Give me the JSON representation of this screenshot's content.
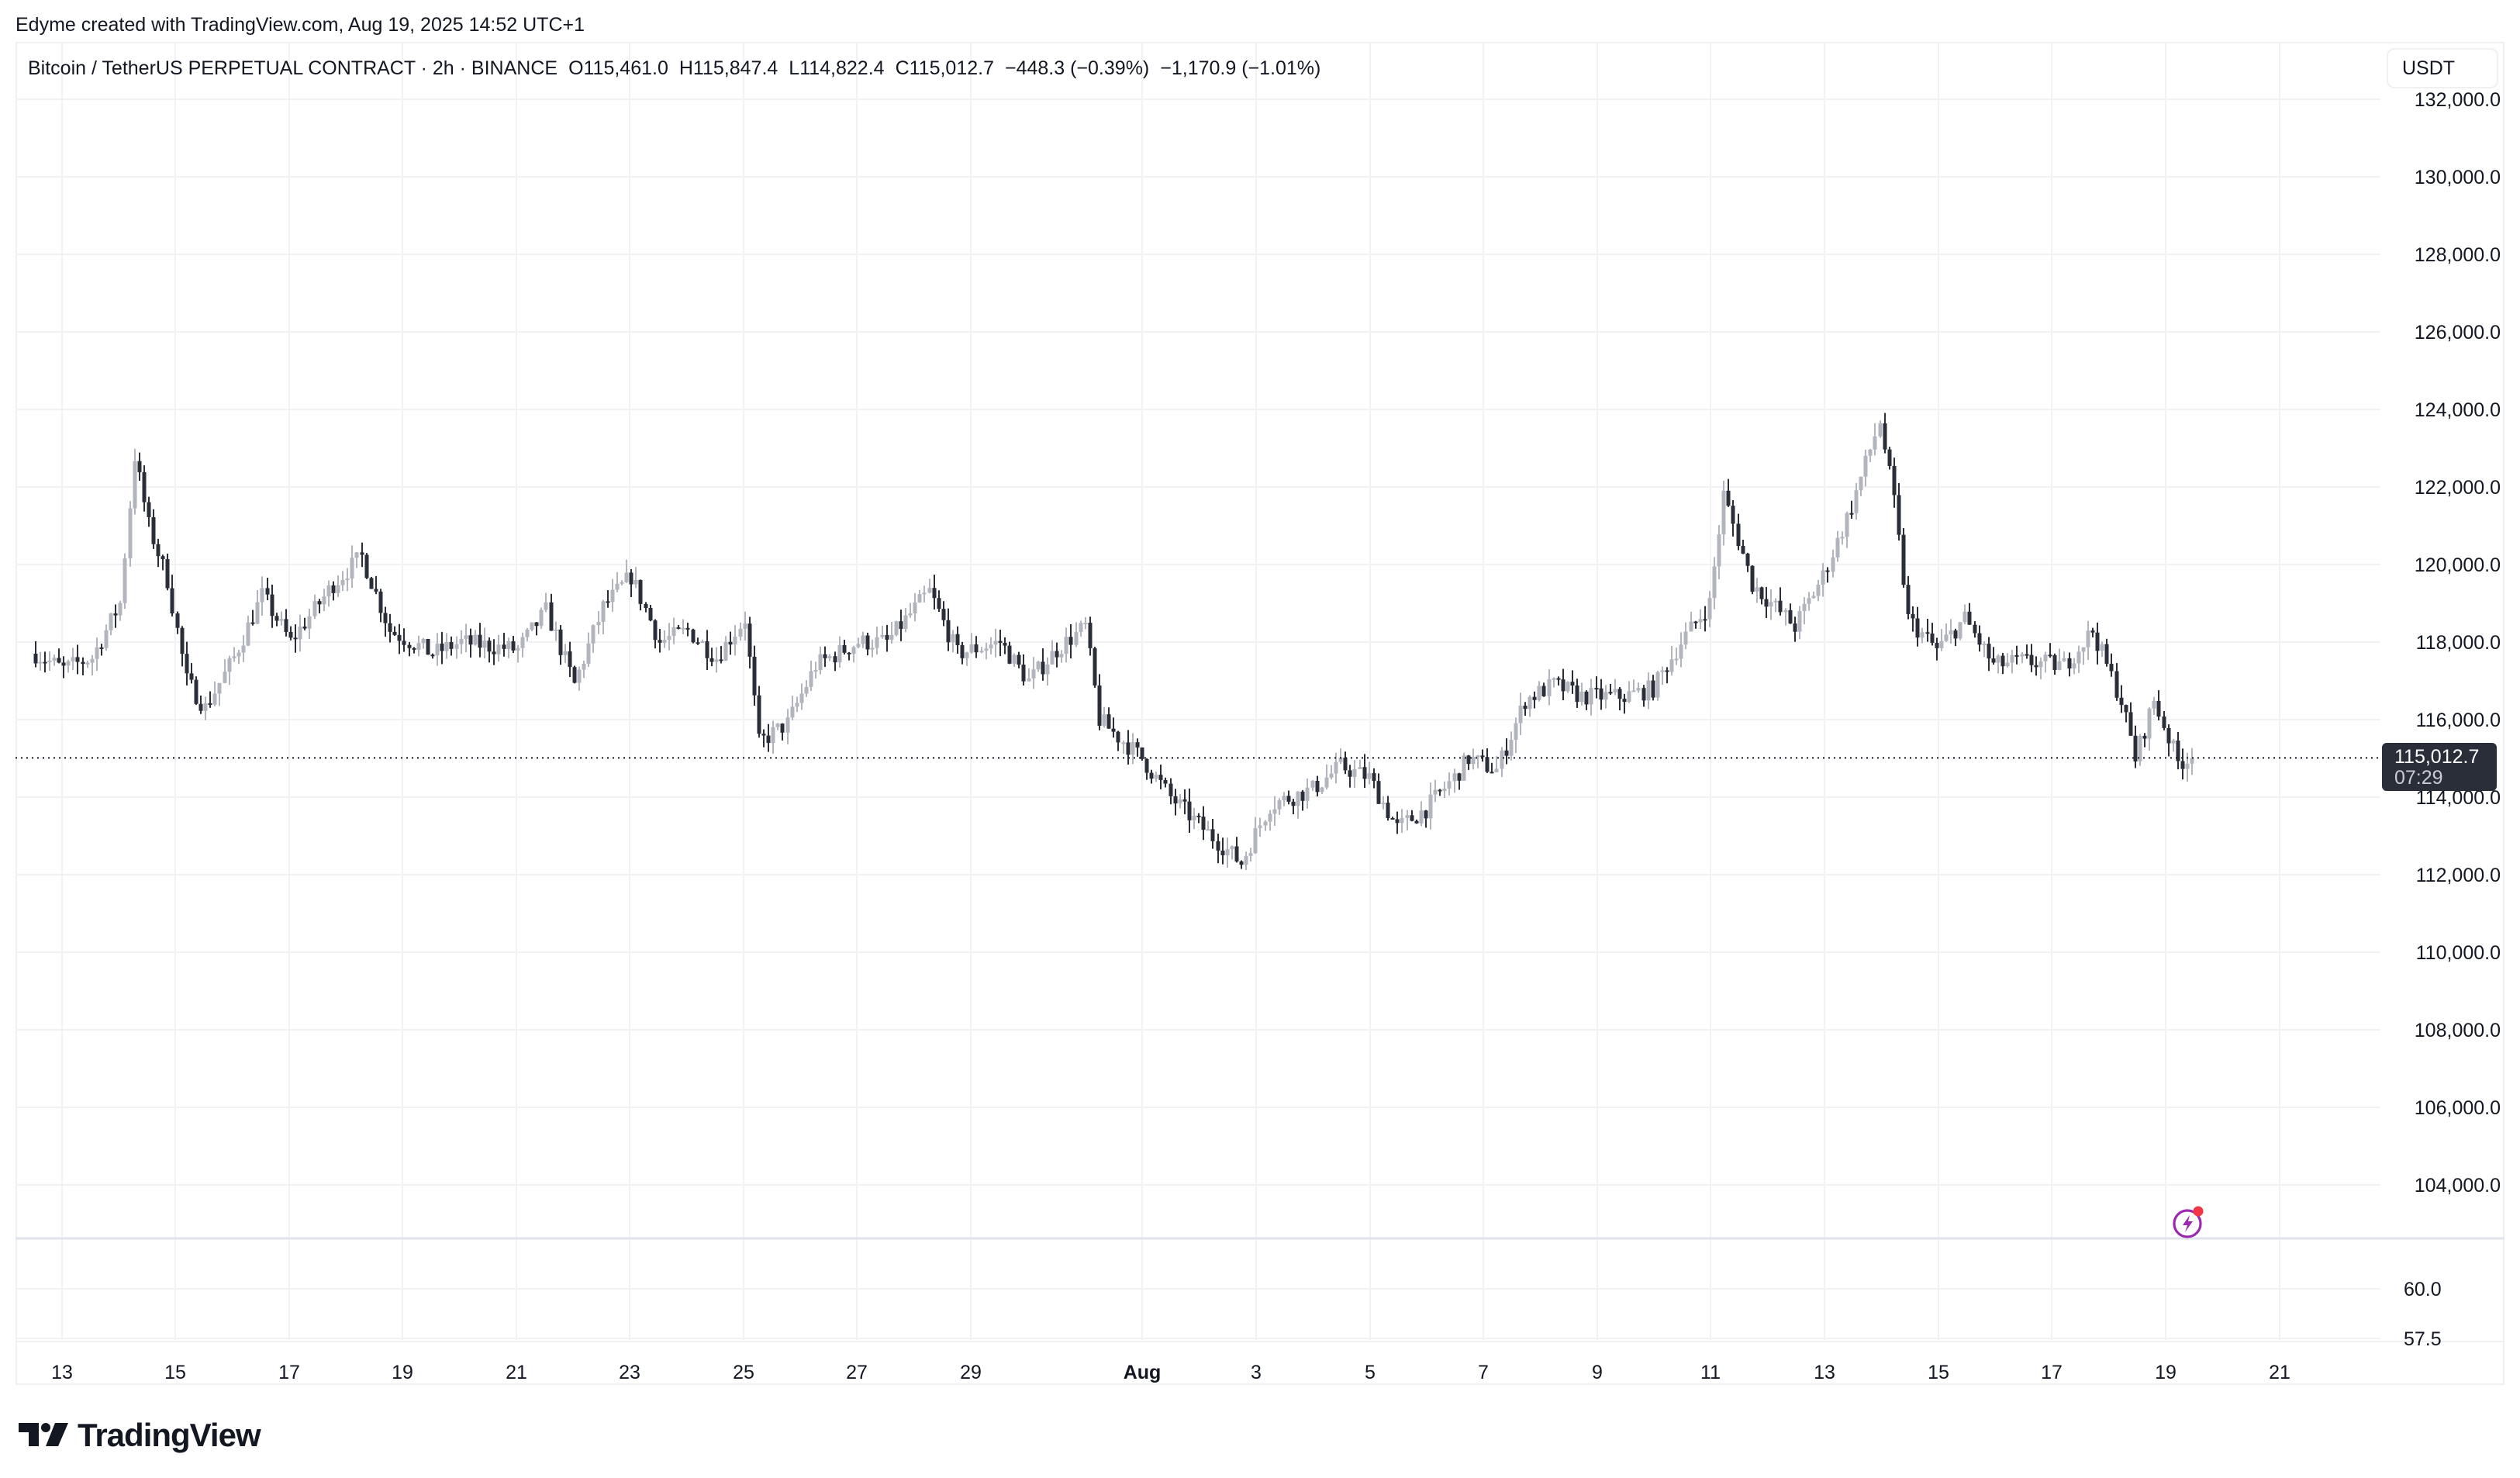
{
  "credit": "Edyme created with TradingView.com, Aug 19, 2025 14:52 UTC+1",
  "legend": {
    "symbol": "Bitcoin / TetherUS PERPETUAL CONTRACT · 2h · BINANCE",
    "open": "O115,461.0",
    "high": "H115,847.4",
    "low": "L114,822.4",
    "close": "C115,012.7",
    "change": "−448.3 (−0.39%)",
    "change2": "−1,170.9 (−1.01%)"
  },
  "currency": "USDT",
  "last_price": {
    "value": "115,012.7",
    "countdown": "07:29"
  },
  "logo_text": "TradingView",
  "colors": {
    "up": "#b2b5be",
    "down": "#2a2e39",
    "grid": "#f2f2f4",
    "text": "#131722",
    "alert": "#9c27b0",
    "alert_dot": "#f23645"
  },
  "chart_data": {
    "type": "candlestick",
    "title": "Bitcoin / TetherUS PERPETUAL CONTRACT · 2h · BINANCE",
    "xlabel": "",
    "ylabel": "USDT",
    "ylim": [
      102600,
      132600
    ],
    "price_ticks": [
      "132,000.0",
      "130,000.0",
      "128,000.0",
      "126,000.0",
      "124,000.0",
      "122,000.0",
      "120,000.0",
      "118,000.0",
      "116,000.0",
      "114,000.0",
      "112,000.0",
      "110,000.0",
      "108,000.0",
      "106,000.0",
      "104,000.0"
    ],
    "lower_pane_ticks": [
      "60.0",
      "57.5"
    ],
    "x_ticks": [
      {
        "label": "13",
        "x": 80
      },
      {
        "label": "15",
        "x": 226
      },
      {
        "label": "17",
        "x": 373
      },
      {
        "label": "19",
        "x": 519
      },
      {
        "label": "21",
        "x": 666
      },
      {
        "label": "23",
        "x": 812
      },
      {
        "label": "25",
        "x": 959
      },
      {
        "label": "27",
        "x": 1105
      },
      {
        "label": "29",
        "x": 1252
      },
      {
        "label": "Aug",
        "x": 1473,
        "bold": true
      },
      {
        "label": "3",
        "x": 1620
      },
      {
        "label": "5",
        "x": 1767
      },
      {
        "label": "7",
        "x": 1913
      },
      {
        "label": "9",
        "x": 2060
      },
      {
        "label": "11",
        "x": 2206
      },
      {
        "label": "13",
        "x": 2353
      },
      {
        "label": "15",
        "x": 2500
      },
      {
        "label": "17",
        "x": 2646
      },
      {
        "label": "19",
        "x": 2793
      },
      {
        "label": "21",
        "x": 2940
      }
    ],
    "key_points_close": [
      [
        "Jul 12 12:00",
        117700
      ],
      [
        "Jul 13 00:00",
        117300
      ],
      [
        "Jul 13 12:00",
        117600
      ],
      [
        "Jul 14 00:00",
        119000
      ],
      [
        "Jul 14 06:00",
        122800
      ],
      [
        "Jul 14 12:00",
        121000
      ],
      [
        "Jul 14 20:00",
        119600
      ],
      [
        "Jul 15 04:00",
        117000
      ],
      [
        "Jul 15 12:00",
        116300
      ],
      [
        "Jul 16 00:00",
        117600
      ],
      [
        "Jul 16 12:00",
        119200
      ],
      [
        "Jul 17 00:00",
        118000
      ],
      [
        "Jul 17 18:00",
        119500
      ],
      [
        "Jul 18 06:00",
        120200
      ],
      [
        "Jul 18 18:00",
        118300
      ],
      [
        "Jul 19 12:00",
        117700
      ],
      [
        "Jul 20 00:00",
        118000
      ],
      [
        "Jul 21 00:00",
        117800
      ],
      [
        "Jul 21 12:00",
        118800
      ],
      [
        "Jul 22 00:00",
        116900
      ],
      [
        "Jul 22 12:00",
        118900
      ],
      [
        "Jul 23 00:00",
        119700
      ],
      [
        "Jul 23 12:00",
        118000
      ],
      [
        "Jul 24 00:00",
        118300
      ],
      [
        "Jul 24 12:00",
        117600
      ],
      [
        "Jul 25 00:00",
        118600
      ],
      [
        "Jul 25 06:00",
        115400
      ],
      [
        "Jul 25 18:00",
        115900
      ],
      [
        "Jul 26 06:00",
        117400
      ],
      [
        "Jul 27 00:00",
        118000
      ],
      [
        "Jul 27 12:00",
        118000
      ],
      [
        "Jul 28 06:00",
        119300
      ],
      [
        "Jul 28 18:00",
        117700
      ],
      [
        "Jul 29 12:00",
        118000
      ],
      [
        "Jul 30 00:00",
        117000
      ],
      [
        "Jul 30 12:00",
        117800
      ],
      [
        "Jul 31 00:00",
        118400
      ],
      [
        "Jul 31 06:00",
        116000
      ],
      [
        "Aug 1 00:00",
        115000
      ],
      [
        "Aug 1 12:00",
        114000
      ],
      [
        "Aug 2 00:00",
        113300
      ],
      [
        "Aug 2 18:00",
        112300
      ],
      [
        "Aug 3 06:00",
        113800
      ],
      [
        "Aug 4 00:00",
        114200
      ],
      [
        "Aug 4 12:00",
        114800
      ],
      [
        "Aug 5 00:00",
        114500
      ],
      [
        "Aug 5 12:00",
        113200
      ],
      [
        "Aug 6 00:00",
        113700
      ],
      [
        "Aug 6 12:00",
        114500
      ],
      [
        "Aug 6 18:00",
        115000
      ],
      [
        "Aug 7 06:00",
        114700
      ],
      [
        "Aug 7 18:00",
        116500
      ],
      [
        "Aug 8 06:00",
        116900
      ],
      [
        "Aug 8 18:00",
        116600
      ],
      [
        "Aug 9 12:00",
        116600
      ],
      [
        "Aug 10 00:00",
        116800
      ],
      [
        "Aug 10 12:00",
        118000
      ],
      [
        "Aug 11 00:00",
        119000
      ],
      [
        "Aug 11 06:00",
        121800
      ],
      [
        "Aug 11 18:00",
        119500
      ],
      [
        "Aug 12 12:00",
        118400
      ],
      [
        "Aug 13 00:00",
        119700
      ],
      [
        "Aug 13 12:00",
        121500
      ],
      [
        "Aug 14 00:00",
        123700
      ],
      [
        "Aug 14 06:00",
        121600
      ],
      [
        "Aug 14 12:00",
        118600
      ],
      [
        "Aug 15 00:00",
        117800
      ],
      [
        "Aug 15 12:00",
        118600
      ],
      [
        "Aug 16 00:00",
        117400
      ],
      [
        "Aug 16 12:00",
        117500
      ],
      [
        "Aug 17 06:00",
        117400
      ],
      [
        "Aug 17 18:00",
        118300
      ],
      [
        "Aug 18 06:00",
        116500
      ],
      [
        "Aug 18 12:00",
        115000
      ],
      [
        "Aug 18 20:00",
        116500
      ],
      [
        "Aug 19 06:00",
        114900
      ],
      [
        "Aug 19 12:00",
        115012.7
      ]
    ],
    "last_close": 115012.7,
    "period_high": 124500,
    "period_low": 112000
  }
}
